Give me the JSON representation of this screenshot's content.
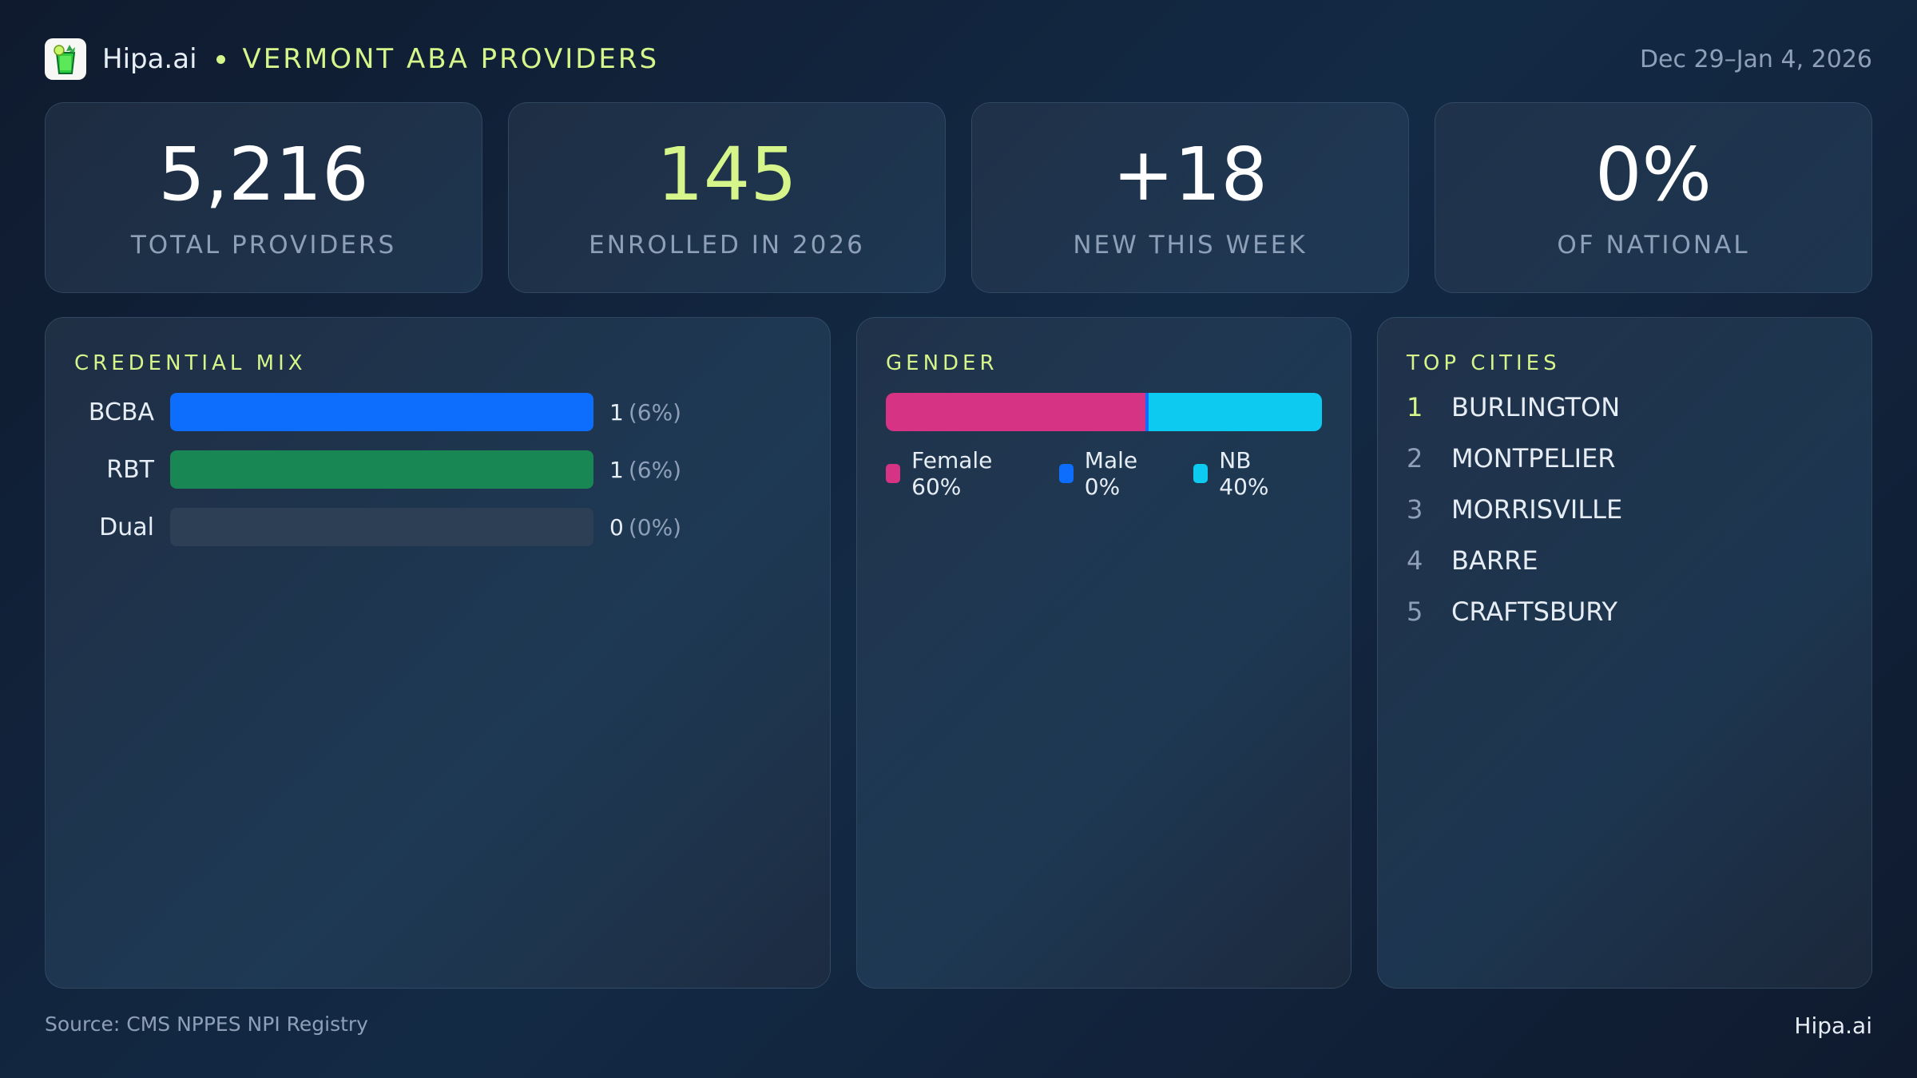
{
  "header": {
    "logo_icon": "mojito-glass-icon",
    "brand": "Hipa.ai",
    "separator": "•",
    "title": "VERMONT ABA PROVIDERS",
    "date_range": "Dec 29–Jan 4, 2026"
  },
  "kpis": [
    {
      "value": "5,216",
      "label": "TOTAL PROVIDERS"
    },
    {
      "value": "145",
      "label": "ENROLLED IN 2026"
    },
    {
      "value": "+18",
      "label": "NEW THIS WEEK"
    },
    {
      "value": "0%",
      "label": "OF NATIONAL"
    }
  ],
  "credential_mix": {
    "title": "CREDENTIAL MIX",
    "rows": [
      {
        "label": "BCBA",
        "count": "1",
        "pct": "(6%)",
        "fill": 100,
        "color": "#0d6efd"
      },
      {
        "label": "RBT",
        "count": "1",
        "pct": "(6%)",
        "fill": 100,
        "color": "#198754"
      },
      {
        "label": "Dual",
        "count": "0",
        "pct": "(0%)",
        "fill": 0,
        "color": "#2d3f55"
      }
    ]
  },
  "gender": {
    "title": "GENDER",
    "segments": [
      {
        "label": "Female 60%",
        "pct": 60,
        "color": "#d63384"
      },
      {
        "label": "Male 0%",
        "pct": 0,
        "color": "#0d6efd"
      },
      {
        "label": "NB 40%",
        "pct": 40,
        "color": "#0dcaf0"
      }
    ]
  },
  "top_cities": {
    "title": "TOP CITIES",
    "items": [
      {
        "rank": "1",
        "name": "BURLINGTON"
      },
      {
        "rank": "2",
        "name": "MONTPELIER"
      },
      {
        "rank": "3",
        "name": "MORRISVILLE"
      },
      {
        "rank": "4",
        "name": "BARRE"
      },
      {
        "rank": "5",
        "name": "CRAFTSBURY"
      }
    ]
  },
  "footer": {
    "source": "Source: CMS NPPES NPI Registry",
    "brand": "Hipa.ai"
  },
  "colors": {
    "accent": "#d6f58a",
    "bcba": "#0d6efd",
    "rbt": "#198754",
    "female": "#d63384",
    "male": "#0d6efd",
    "nb": "#0dcaf0"
  }
}
